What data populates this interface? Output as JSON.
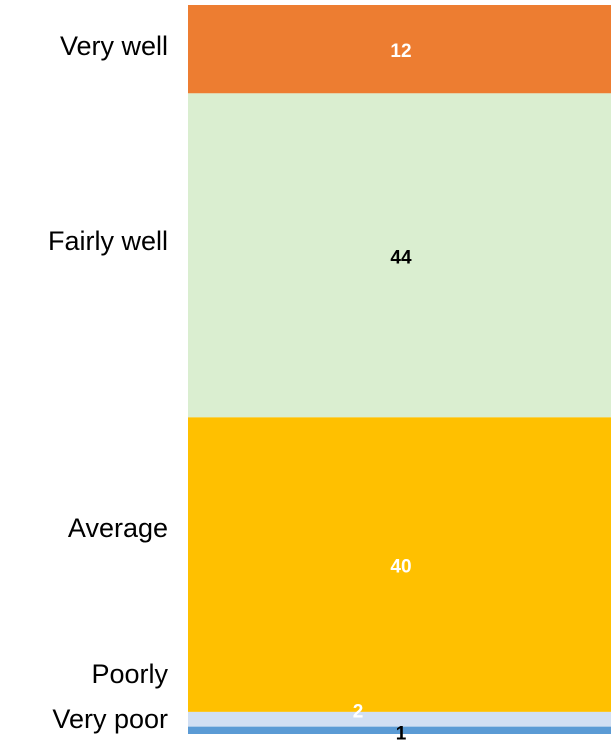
{
  "chart_data": {
    "type": "stacked_bar",
    "series": [
      {
        "name": "Very well",
        "color": "#ed7d31",
        "label_color": "#ffffff",
        "values": [
          12
        ]
      },
      {
        "name": "Fairly well",
        "color": "#daeed0",
        "label_color": "#000000",
        "values": [
          44
        ]
      },
      {
        "name": "Average",
        "color": "#ffc000",
        "label_color": "#ffffff",
        "values": [
          40
        ]
      },
      {
        "name": "Poorly",
        "color": "#d1dff3",
        "label_color": "#ffffff",
        "values": [
          2
        ]
      },
      {
        "name": "Very poor",
        "color": "#5b9bd5",
        "label_color": "#000000",
        "values": [
          1
        ]
      }
    ]
  }
}
